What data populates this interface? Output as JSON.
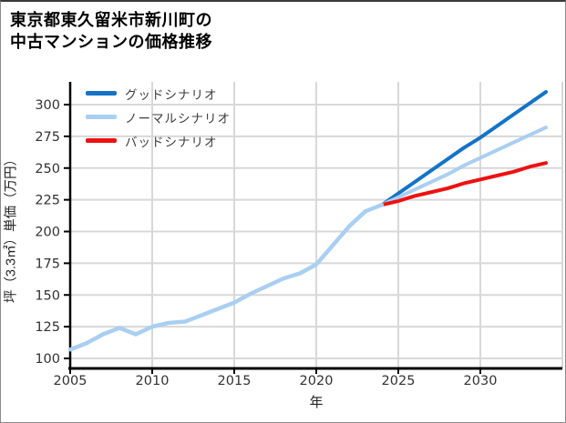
{
  "title": {
    "line1": "東京都東久留米市新川町の",
    "line2": "中古マンションの価格推移"
  },
  "axes": {
    "x_label": "年",
    "y_label": "坪（3.3㎡）単価（万円）"
  },
  "colors": {
    "good": "#1273c8",
    "normal": "#a9cff2",
    "bad": "#ee1111",
    "grid": "#d8d8d8",
    "spine": "#000000",
    "tick_text": "#333333"
  },
  "chart_data": {
    "type": "line",
    "title": "東京都東久留米市新川町の中古マンションの価格推移",
    "xlabel": "年",
    "ylabel": "坪（3.3㎡）単価（万円）",
    "xlim": [
      2005,
      2035
    ],
    "ylim": [
      92,
      318
    ],
    "x_ticks": [
      2005,
      2010,
      2015,
      2020,
      2025,
      2030
    ],
    "y_ticks": [
      100,
      125,
      150,
      175,
      200,
      225,
      250,
      275,
      300
    ],
    "grid": true,
    "legend_position": "upper left",
    "history": {
      "x": [
        2005,
        2006,
        2007,
        2008,
        2009,
        2010,
        2011,
        2012,
        2013,
        2014,
        2015,
        2016,
        2017,
        2018,
        2019,
        2020,
        2021,
        2022,
        2023,
        2024
      ],
      "values": [
        107,
        112,
        119,
        124,
        119,
        125,
        128,
        129,
        134,
        139,
        144,
        151,
        157,
        163,
        167,
        174,
        189,
        204,
        216,
        221
      ]
    },
    "scenarios": [
      {
        "name": "グッドシナリオ",
        "color": "#1273c8",
        "x": [
          2024,
          2025,
          2026,
          2027,
          2028,
          2029,
          2030,
          2031,
          2032,
          2033,
          2034
        ],
        "values": [
          221,
          230,
          239,
          248,
          257,
          266,
          274,
          283,
          292,
          301,
          310
        ]
      },
      {
        "name": "ノーマルシナリオ",
        "color": "#a9cff2",
        "x": [
          2024,
          2025,
          2026,
          2027,
          2028,
          2029,
          2030,
          2031,
          2032,
          2033,
          2034
        ],
        "values": [
          221,
          227,
          233,
          239,
          245,
          252,
          258,
          264,
          270,
          276,
          282
        ]
      },
      {
        "name": "バッドシナリオ",
        "color": "#ee1111",
        "x": [
          2024,
          2025,
          2026,
          2027,
          2028,
          2029,
          2030,
          2031,
          2032,
          2033,
          2034
        ],
        "values": [
          221,
          224,
          228,
          231,
          234,
          238,
          241,
          244,
          247,
          251,
          254
        ]
      }
    ]
  }
}
